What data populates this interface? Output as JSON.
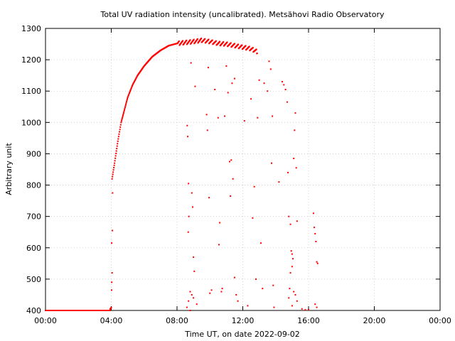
{
  "chart_data": {
    "type": "scatter",
    "title": "Total UV radiation intensity (uncalibrated). Metsähovi Radio Observatory",
    "xlabel": "Time UT, on date 2022-09-02",
    "ylabel": "Arbitrary unit",
    "xlim": [
      0,
      24
    ],
    "ylim": [
      400,
      1300
    ],
    "x_ticks": [
      0,
      4,
      8,
      12,
      16,
      20,
      24
    ],
    "x_tick_labels": [
      "00:00",
      "04:00",
      "08:00",
      "12:00",
      "16:00",
      "20:00",
      "00:00"
    ],
    "y_ticks": [
      400,
      500,
      600,
      700,
      800,
      900,
      1000,
      1100,
      1200,
      1300
    ],
    "grid": true,
    "legend": "none",
    "series": [
      {
        "color": "#ff0000",
        "curve": [
          [
            0.0,
            400
          ],
          [
            3.93,
            400
          ],
          [
            4.0,
            410
          ],
          [
            4.05,
            820
          ],
          [
            4.2,
            870
          ],
          [
            4.4,
            940
          ],
          [
            4.6,
            1000
          ],
          [
            4.8,
            1040
          ],
          [
            5.0,
            1080
          ],
          [
            5.3,
            1120
          ],
          [
            5.6,
            1150
          ],
          [
            6.0,
            1180
          ],
          [
            6.5,
            1210
          ],
          [
            7.0,
            1230
          ],
          [
            7.5,
            1245
          ],
          [
            8.0,
            1252
          ],
          [
            8.5,
            1255
          ],
          [
            9.0,
            1258
          ],
          [
            9.5,
            1262
          ],
          [
            10.0,
            1258
          ],
          [
            10.5,
            1252
          ],
          [
            11.0,
            1250
          ],
          [
            11.5,
            1245
          ],
          [
            12.0,
            1240
          ],
          [
            12.5,
            1235
          ],
          [
            12.9,
            1225
          ]
        ],
        "scatter": [
          [
            3.93,
            405
          ],
          [
            4.0,
            408
          ],
          [
            4.02,
            465
          ],
          [
            4.03,
            490
          ],
          [
            4.05,
            520
          ],
          [
            4.07,
            655
          ],
          [
            4.08,
            775
          ],
          [
            8.62,
            990
          ],
          [
            8.65,
            955
          ],
          [
            8.7,
            805
          ],
          [
            8.72,
            700
          ],
          [
            8.68,
            650
          ],
          [
            8.6,
            410
          ],
          [
            8.8,
            460
          ],
          [
            8.85,
            1190
          ],
          [
            8.9,
            775
          ],
          [
            8.95,
            730
          ],
          [
            9.0,
            570
          ],
          [
            9.05,
            525
          ],
          [
            9.1,
            1115
          ],
          [
            8.9,
            450
          ],
          [
            9.0,
            440
          ],
          [
            9.2,
            420
          ],
          [
            8.7,
            430
          ],
          [
            8.8,
            400
          ],
          [
            9.8,
            1025
          ],
          [
            9.85,
            975
          ],
          [
            9.9,
            1175
          ],
          [
            9.95,
            760
          ],
          [
            10.0,
            455
          ],
          [
            10.1,
            465
          ],
          [
            10.3,
            1105
          ],
          [
            10.5,
            1015
          ],
          [
            10.55,
            610
          ],
          [
            10.6,
            680
          ],
          [
            10.7,
            460
          ],
          [
            10.75,
            470
          ],
          [
            10.9,
            1020
          ],
          [
            11.0,
            1180
          ],
          [
            11.1,
            1095
          ],
          [
            11.2,
            875
          ],
          [
            11.25,
            765
          ],
          [
            11.3,
            880
          ],
          [
            11.4,
            820
          ],
          [
            11.5,
            1140
          ],
          [
            11.35,
            1125
          ],
          [
            11.5,
            505
          ],
          [
            11.6,
            450
          ],
          [
            11.7,
            430
          ],
          [
            12.1,
            1005
          ],
          [
            12.3,
            415
          ],
          [
            12.5,
            1075
          ],
          [
            12.6,
            695
          ],
          [
            12.7,
            795
          ],
          [
            12.8,
            500
          ],
          [
            12.9,
            1015
          ],
          [
            13.0,
            1135
          ],
          [
            13.1,
            615
          ],
          [
            13.2,
            470
          ],
          [
            13.3,
            1125
          ],
          [
            13.5,
            1100
          ],
          [
            13.6,
            1195
          ],
          [
            13.7,
            1170
          ],
          [
            13.75,
            870
          ],
          [
            13.8,
            1020
          ],
          [
            13.85,
            480
          ],
          [
            13.9,
            410
          ],
          [
            14.2,
            810
          ],
          [
            14.4,
            1130
          ],
          [
            14.5,
            1120
          ],
          [
            14.6,
            1105
          ],
          [
            14.7,
            1065
          ],
          [
            14.75,
            840
          ],
          [
            14.8,
            700
          ],
          [
            14.9,
            675
          ],
          [
            14.95,
            590
          ],
          [
            15.0,
            580
          ],
          [
            15.05,
            565
          ],
          [
            15.1,
            885
          ],
          [
            15.15,
            975
          ],
          [
            15.2,
            1030
          ],
          [
            15.25,
            855
          ],
          [
            15.3,
            685
          ],
          [
            15.0,
            540
          ],
          [
            14.9,
            520
          ],
          [
            14.85,
            470
          ],
          [
            15.1,
            460
          ],
          [
            15.2,
            450
          ],
          [
            14.8,
            440
          ],
          [
            15.3,
            430
          ],
          [
            15.0,
            415
          ],
          [
            16.3,
            710
          ],
          [
            16.35,
            665
          ],
          [
            16.4,
            645
          ],
          [
            16.45,
            620
          ],
          [
            16.5,
            555
          ],
          [
            16.55,
            550
          ],
          [
            16.4,
            420
          ],
          [
            16.5,
            410
          ],
          [
            15.6,
            405
          ],
          [
            15.8,
            402
          ],
          [
            16.0,
            402
          ]
        ]
      }
    ]
  }
}
